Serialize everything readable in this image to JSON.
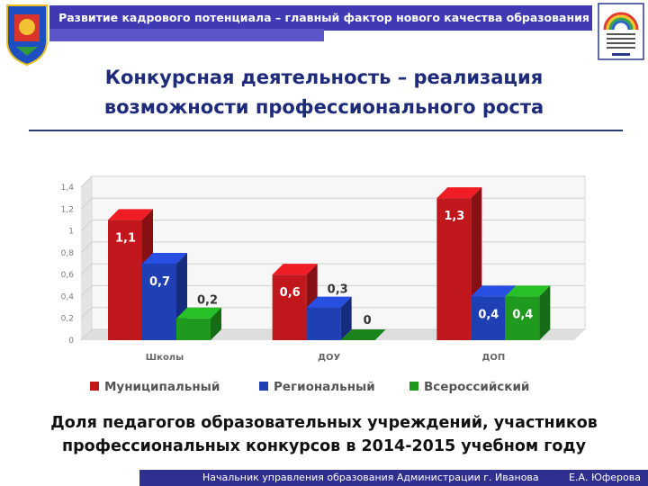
{
  "header": {
    "text": "Развитие кадрового потенциала – главный фактор нового качества образования",
    "colors": {
      "bar": "#3f3ab3"
    }
  },
  "title": {
    "line1": "Конкурсная деятельность – реализация",
    "line2": "возможности профессионального роста"
  },
  "chart_data": {
    "type": "bar",
    "categories": [
      "Школы",
      "ДОУ",
      "ДОП"
    ],
    "series": [
      {
        "name": "Муниципальный",
        "values": [
          1.1,
          0.6,
          1.3
        ],
        "labels": [
          "1,1",
          "0,6",
          "1,3"
        ],
        "color": "#c0171d"
      },
      {
        "name": "Региональный",
        "values": [
          0.7,
          0.3,
          0.4
        ],
        "labels": [
          "0,7",
          "0,3",
          "0,4"
        ],
        "color": "#1f3fb5"
      },
      {
        "name": "Всероссийский",
        "values": [
          0.2,
          0,
          0.4
        ],
        "labels": [
          "0,2",
          "0",
          "0,4"
        ],
        "color": "#1f9a1f"
      }
    ],
    "yticks": [
      "0",
      "0,2",
      "0,4",
      "0,6",
      "0,8",
      "1",
      "1,2",
      "1,4"
    ],
    "ylim": [
      0,
      1.4
    ],
    "grid": true,
    "legend_position": "bottom"
  },
  "caption": {
    "line1": "Доля педагогов образовательных учреждений, участников",
    "line2": "профессиональных конкурсов в 2014-2015 учебном году"
  },
  "footer": {
    "text": "Начальник управления образования Администрации  г. Иванова",
    "author": "Е.А. Юферова"
  }
}
